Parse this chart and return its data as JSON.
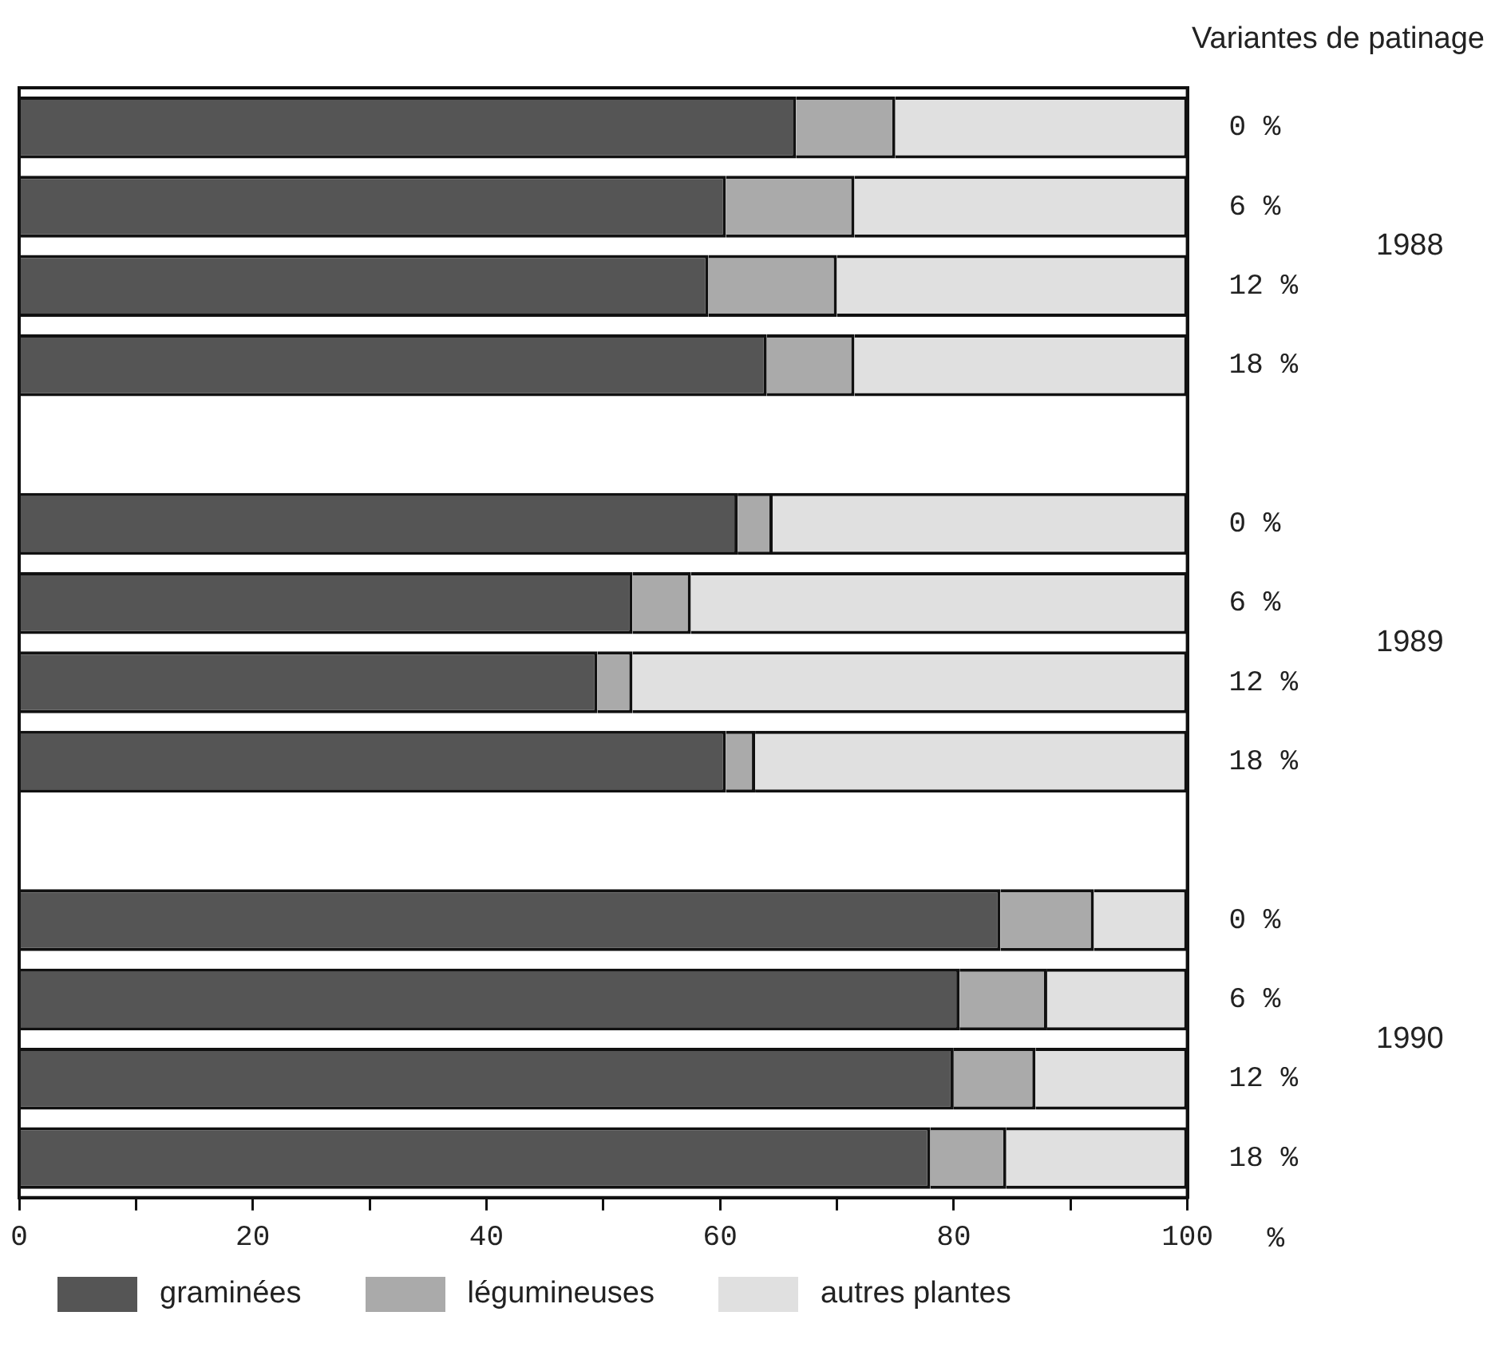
{
  "chart_data": {
    "type": "bar",
    "orientation": "horizontal",
    "stacked": true,
    "ylabel": "Variantes de patinage",
    "xlabel": "%",
    "categories": [
      "0 %",
      "6 %",
      "12 %",
      "18 %",
      null,
      "0 %",
      "6 %",
      "12 %",
      "18 %",
      null,
      "0 %",
      "6 %",
      "12 %",
      "18 %"
    ],
    "series": [
      {
        "name": "graminées",
        "color": "#555555",
        "values": [
          66.5,
          60.5,
          59,
          64,
          null,
          61.5,
          52.5,
          49.5,
          60.5,
          null,
          84,
          80.5,
          80,
          78
        ]
      },
      {
        "name": "légumineuses",
        "color": "#aaaaaa",
        "values": [
          8.5,
          11,
          11,
          7.5,
          null,
          3,
          5,
          3,
          2.5,
          null,
          8,
          7.5,
          7,
          6.5
        ]
      },
      {
        "name": "autres plantes",
        "color": "#e0e0e0",
        "values": [
          25,
          28.5,
          30,
          28.5,
          null,
          35.5,
          42.5,
          47.5,
          37,
          null,
          8,
          12,
          13,
          15.5
        ]
      }
    ],
    "xlim": [
      0,
      100
    ],
    "xticks": [
      0,
      {
        "value": 10,
        "label": null
      },
      20,
      {
        "value": 30,
        "label": null
      },
      40,
      {
        "value": 50,
        "label": null
      },
      60,
      {
        "value": 70,
        "label": null
      },
      80,
      {
        "value": 90,
        "label": null
      },
      100
    ],
    "annotations": [
      "1988",
      "1989",
      "1990"
    ],
    "grid": false,
    "legend": "bottom"
  }
}
